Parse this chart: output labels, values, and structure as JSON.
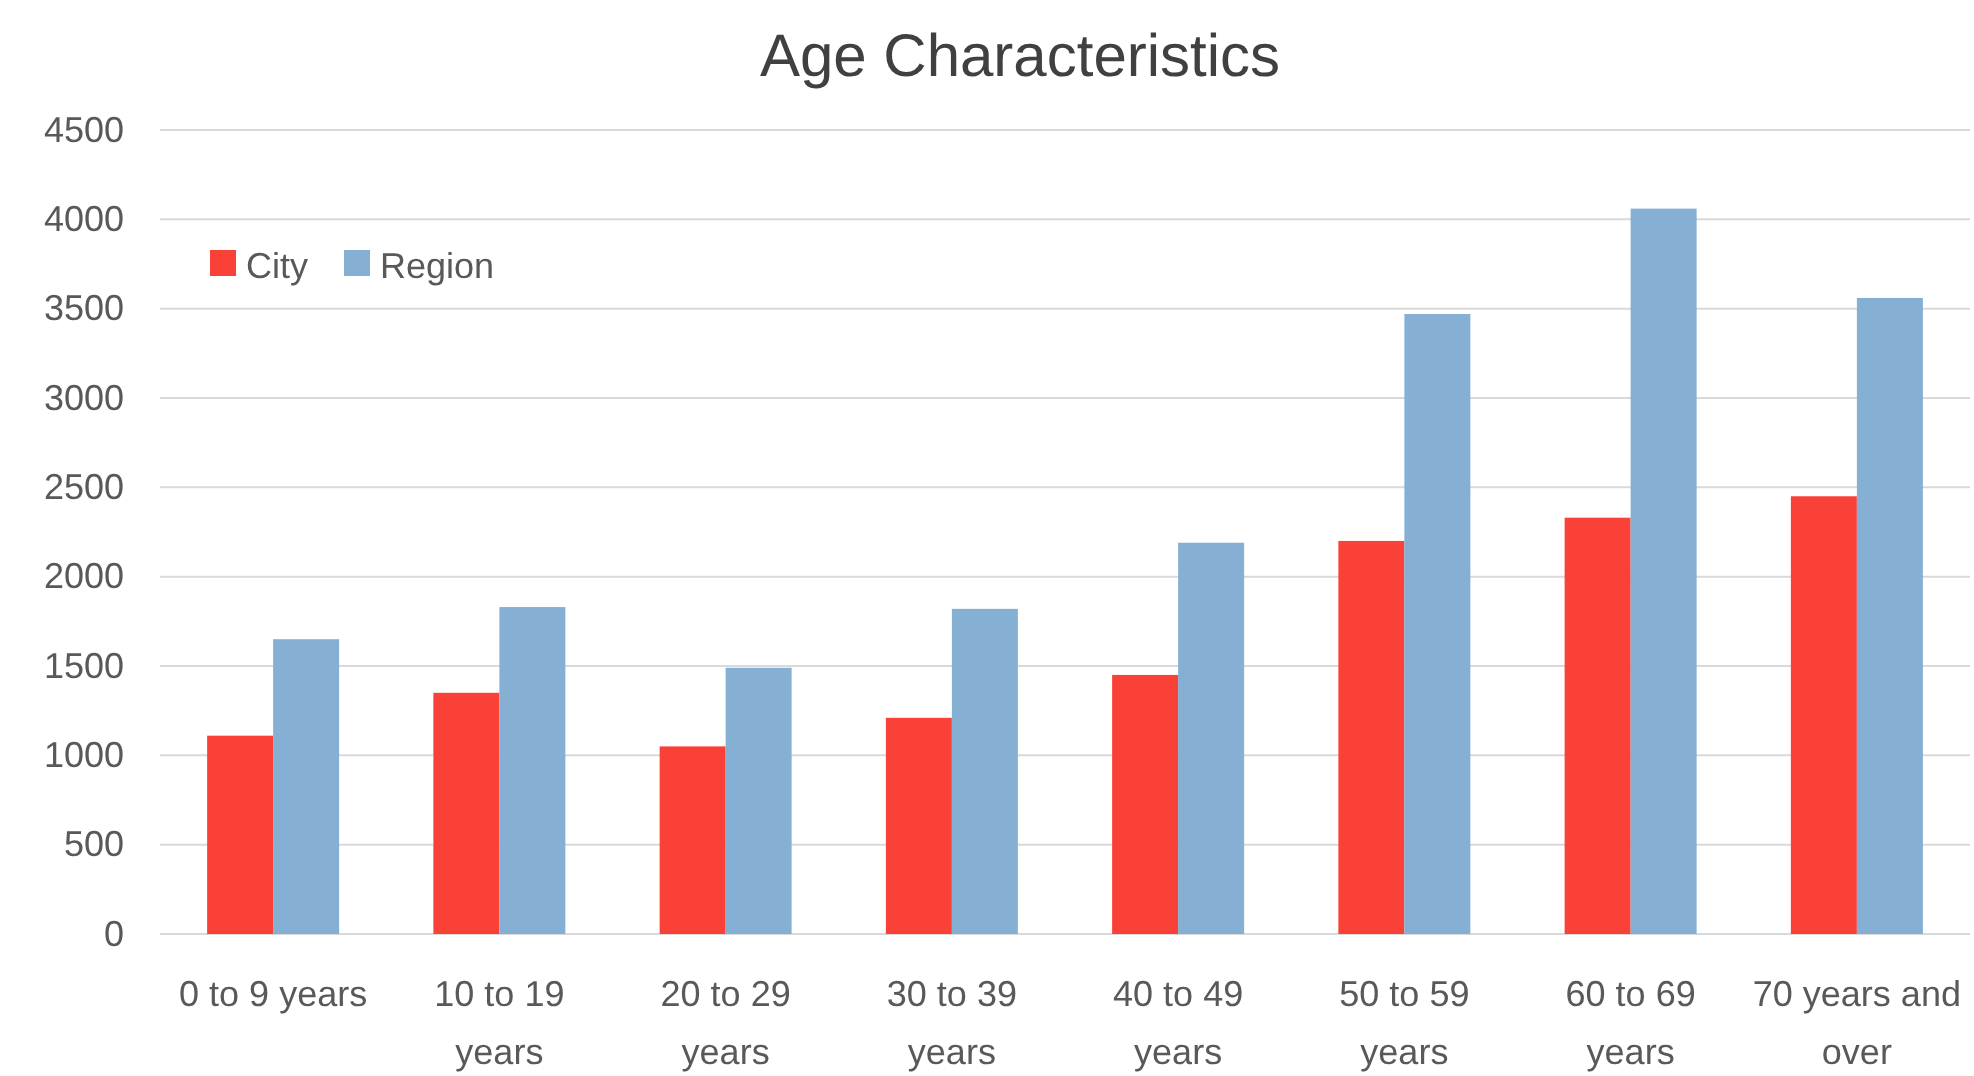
{
  "chart_data": {
    "type": "bar",
    "title": "Age Characteristics",
    "categories": [
      "0 to 9 years",
      "10 to 19 years",
      "20 to 29 years",
      "30 to 39 years",
      "40 to 49 years",
      "50 to 59 years",
      "60 to 69 years",
      "70 years and over"
    ],
    "series": [
      {
        "name": "City",
        "color": "#fa4138",
        "values": [
          1110,
          1350,
          1050,
          1210,
          1450,
          2200,
          2330,
          2450
        ]
      },
      {
        "name": "Region",
        "color": "#86b0d3",
        "values": [
          1650,
          1830,
          1490,
          1820,
          2190,
          3470,
          4060,
          3560
        ]
      }
    ],
    "ylim": [
      0,
      4500
    ],
    "yticks": [
      0,
      500,
      1000,
      1500,
      2000,
      2500,
      3000,
      3500,
      4000,
      4500
    ],
    "grid": "y",
    "legend": "top left"
  }
}
